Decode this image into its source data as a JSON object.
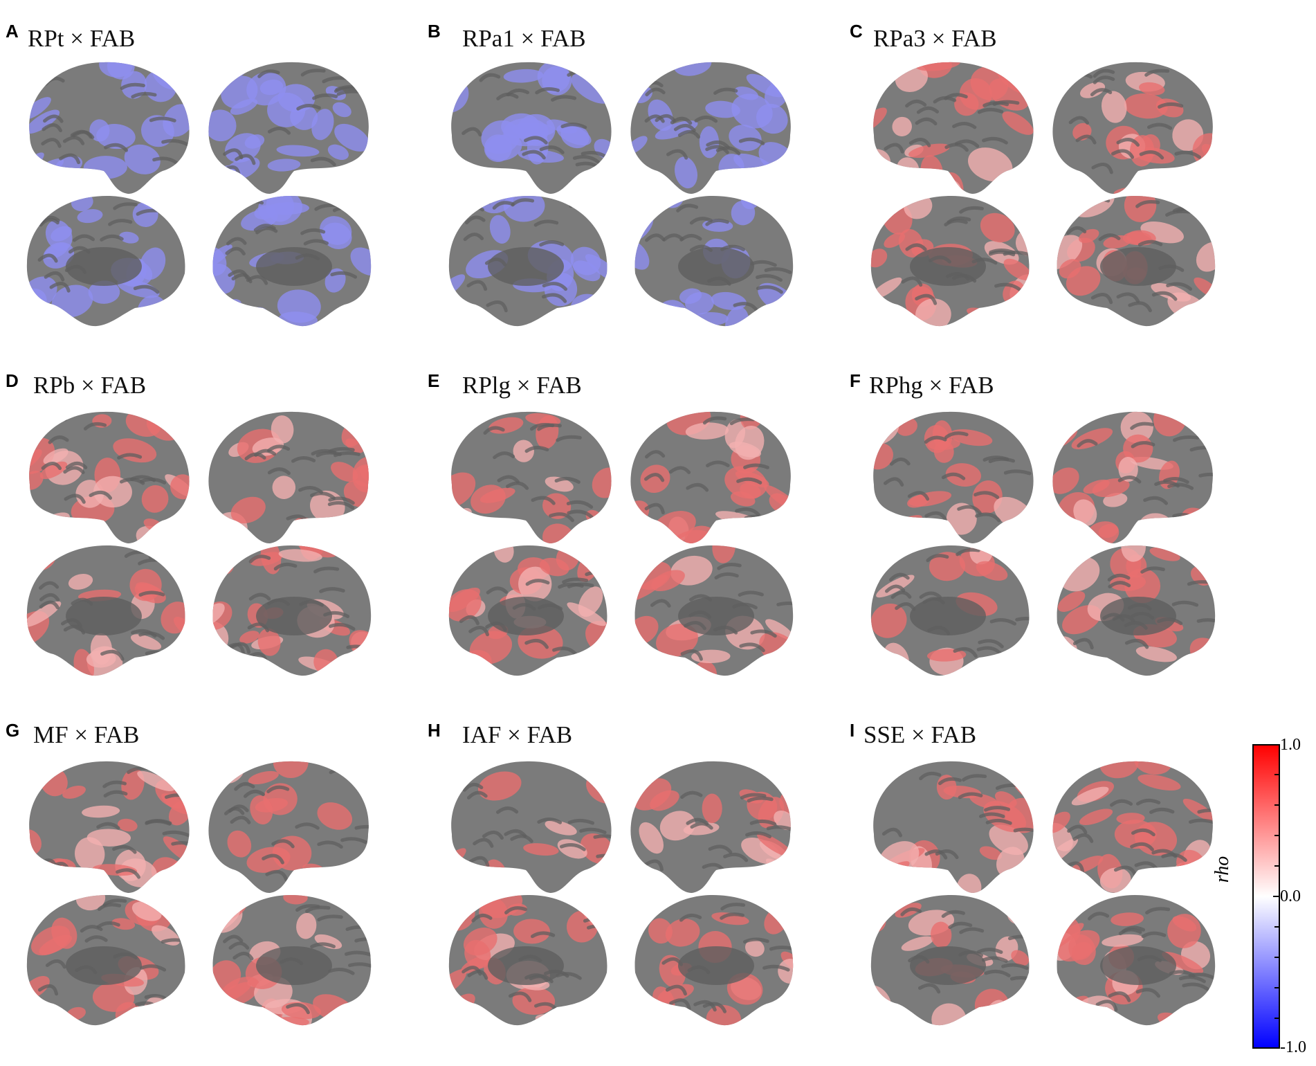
{
  "panels": [
    {
      "letter": "A",
      "title": "RPt × FAB",
      "tone": "blue",
      "strength": 0.45
    },
    {
      "letter": "B",
      "title": "RPa1 × FAB",
      "tone": "blue",
      "strength": 0.5
    },
    {
      "letter": "C",
      "title": "RPa3 × FAB",
      "tone": "red",
      "strength": 0.5
    },
    {
      "letter": "D",
      "title": "RPb × FAB",
      "tone": "red",
      "strength": 0.45
    },
    {
      "letter": "E",
      "title": "RPlg × FAB",
      "tone": "red",
      "strength": 0.5
    },
    {
      "letter": "F",
      "title": "RPhg × FAB",
      "tone": "red",
      "strength": 0.45
    },
    {
      "letter": "G",
      "title": "MF × FAB",
      "tone": "red",
      "strength": 0.45
    },
    {
      "letter": "H",
      "title": "IAF × FAB",
      "tone": "red",
      "strength": 0.45
    },
    {
      "letter": "I",
      "title": "SSE × FAB",
      "tone": "red",
      "strength": 0.5
    }
  ],
  "colors": {
    "cortex": "#7b7b7b",
    "cortex_shadow": "#5f5f5f",
    "blue_overlay": "#8f8ff0",
    "red_overlay": "#e86f6f",
    "light_red_overlay": "#f2b0b0"
  },
  "colorbar": {
    "max_label": "1.0",
    "mid_label": "0.0",
    "min_label": "-1.0",
    "axis_label": "rho",
    "range": [
      -1.0,
      1.0
    ],
    "top_color": "#ff0000",
    "mid_color": "#ffffff",
    "bottom_color": "#0000ff"
  }
}
